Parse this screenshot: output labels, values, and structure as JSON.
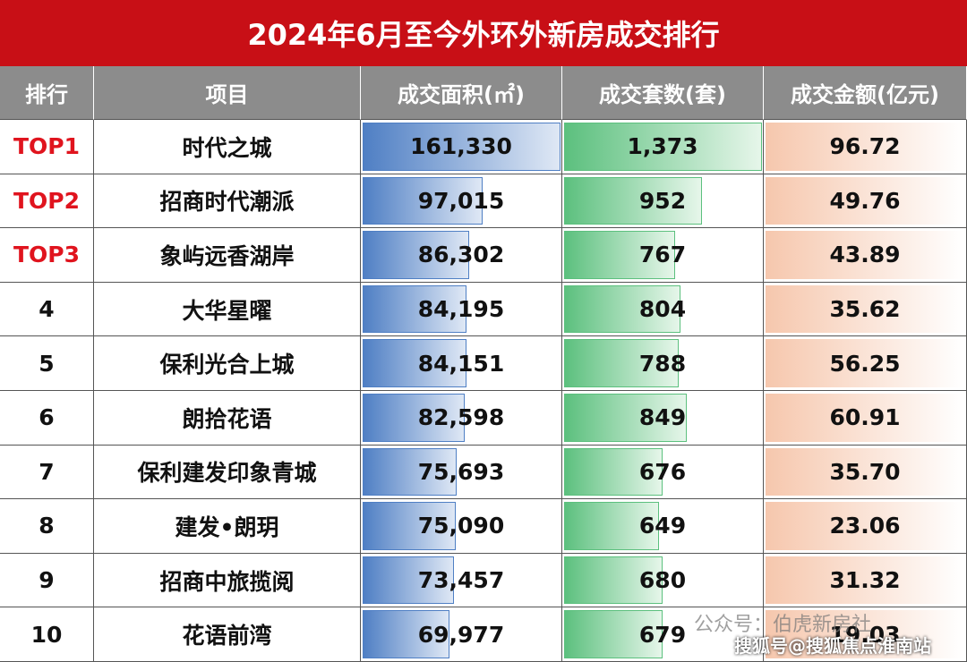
{
  "header": {
    "title": "2024年6月至今外环外新房成交排行"
  },
  "table": {
    "columns": [
      "排行",
      "项目",
      "成交面积(㎡)",
      "成交套数(套)",
      "成交金额(亿元)"
    ],
    "rows": [
      [
        "TOP1",
        "时代之城",
        {
          "value": 161330,
          "label": "161,330"
        },
        {
          "value": 1373,
          "label": "1,373"
        },
        96.72
      ],
      [
        "TOP2",
        "招商时代潮派",
        {
          "value": 97015,
          "label": "97,015"
        },
        952,
        49.76
      ],
      [
        "TOP3",
        "象屿远香湖岸",
        {
          "value": 86302,
          "label": "86,302"
        },
        767,
        43.89
      ],
      [
        4,
        "大华星曜",
        {
          "value": 84195,
          "label": "84,195"
        },
        804,
        35.62
      ],
      [
        5,
        "保利光合上城",
        {
          "value": 84151,
          "label": "84,151"
        },
        788,
        56.25
      ],
      [
        6,
        "朗拾花语",
        {
          "value": 82598,
          "label": "82,598"
        },
        849,
        60.91
      ],
      [
        7,
        "保利建发印象青城",
        {
          "value": 75693,
          "label": "75,693"
        },
        676,
        {
          "value": 35.7,
          "label": "35.70"
        }
      ],
      [
        8,
        "建发•朗玥",
        {
          "value": 75090,
          "label": "75,090"
        },
        649,
        23.06
      ],
      [
        9,
        "招商中旅揽阅",
        {
          "value": 73457,
          "label": "73,457"
        },
        680,
        31.32
      ],
      [
        10,
        "花语前湾",
        {
          "value": 69977,
          "label": "69,977"
        },
        679,
        19.03
      ]
    ]
  },
  "watermark": {
    "line1": "公众号：伯虎新房社",
    "line2": "搜狐号@搜狐焦点淮南站"
  }
}
